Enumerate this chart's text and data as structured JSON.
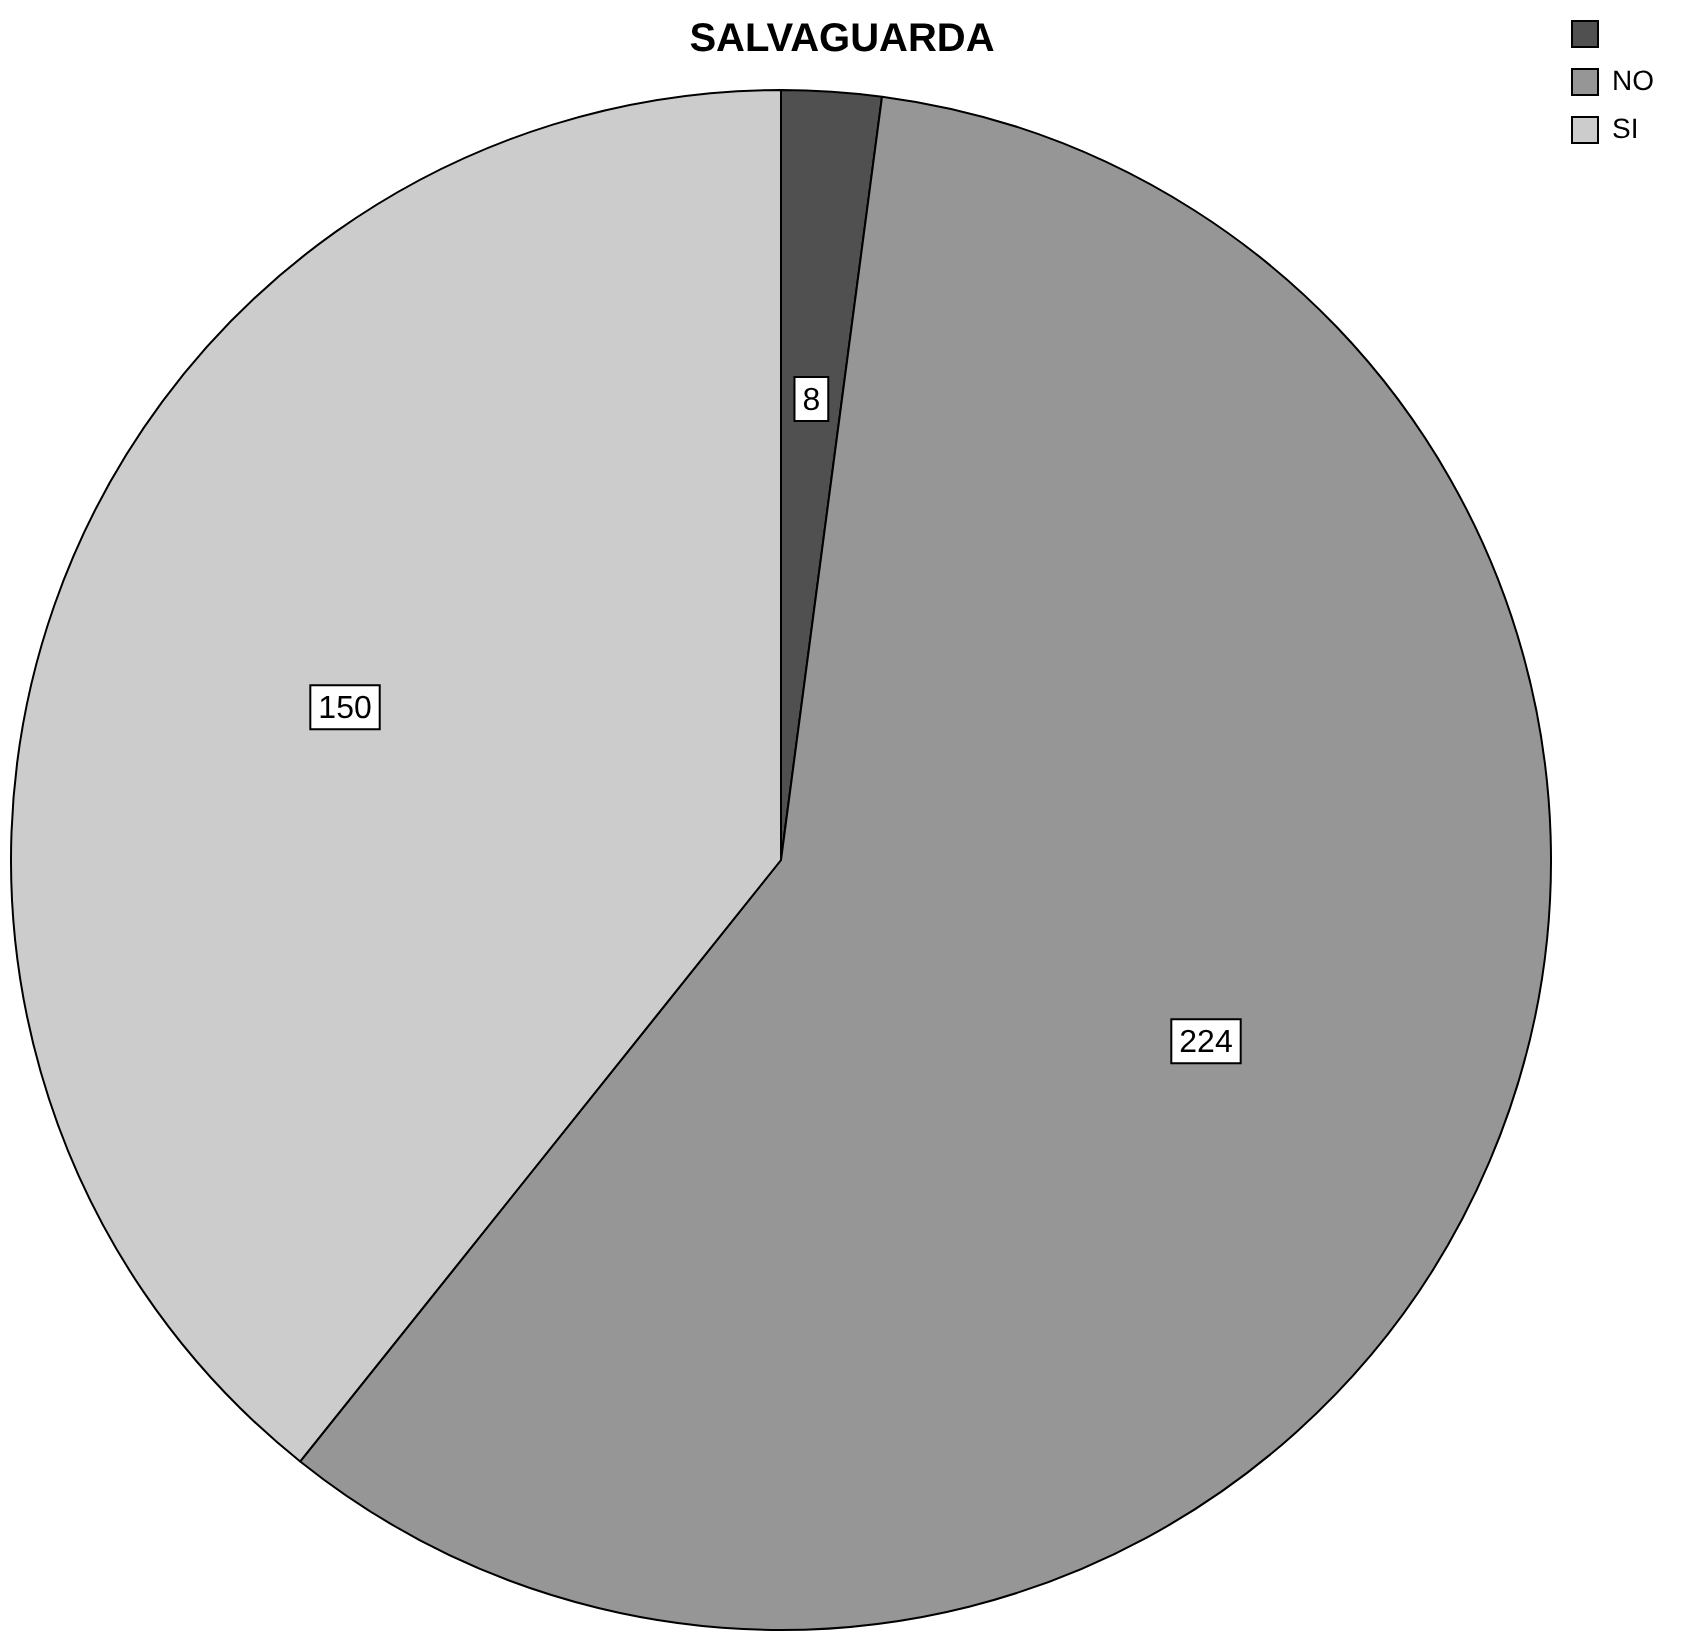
{
  "chart_data": {
    "type": "pie",
    "title": "SALVAGUARDA",
    "categories": [
      null,
      "NO",
      "SI"
    ],
    "values": [
      8,
      224,
      150
    ],
    "colors": [
      "#505050",
      "#969696",
      "#cccccc"
    ],
    "legend": "top right",
    "data_labels": true
  }
}
